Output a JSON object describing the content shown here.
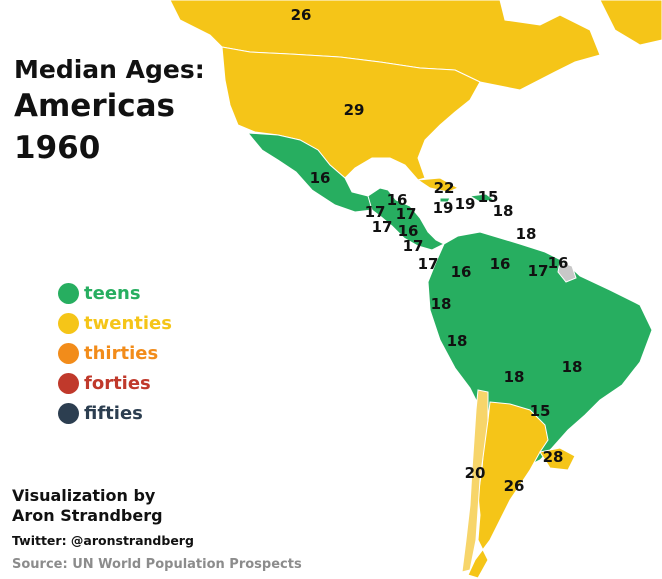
{
  "title": {
    "line1": "Median Ages:",
    "line2": "Americas",
    "line3": "1960"
  },
  "colors": {
    "teens": "#27ae60",
    "twenties": "#f5c518",
    "thirties": "#f28c1a",
    "forties": "#c0392b",
    "fifties": "#2c3e50",
    "no_data": "#c8c8c8"
  },
  "legend": [
    {
      "label": "teens",
      "color": "#27ae60"
    },
    {
      "label": "twenties",
      "color": "#f5c518"
    },
    {
      "label": "thirties",
      "color": "#f28c1a"
    },
    {
      "label": "forties",
      "color": "#c0392b"
    },
    {
      "label": "fifties",
      "color": "#2c3e50"
    }
  ],
  "credits": {
    "line1": "Visualization by",
    "line2": "Aron Strandberg",
    "twitter": "Twitter: @aronstrandberg",
    "source": "Source: UN World Population Prospects"
  },
  "regions": [
    {
      "name": "canada",
      "age": "26"
    },
    {
      "name": "united-states",
      "age": "29"
    },
    {
      "name": "mexico",
      "age": "16"
    },
    {
      "name": "cuba",
      "age": "22"
    },
    {
      "name": "belize",
      "age": "16"
    },
    {
      "name": "guatemala",
      "age": "17"
    },
    {
      "name": "honduras",
      "age": "17"
    },
    {
      "name": "el-salvador",
      "age": "17"
    },
    {
      "name": "nicaragua",
      "age": "16"
    },
    {
      "name": "costa-rica",
      "age": "17"
    },
    {
      "name": "panama",
      "age": "17"
    },
    {
      "name": "jamaica",
      "age": "19"
    },
    {
      "name": "haiti",
      "age": "19"
    },
    {
      "name": "dominican-republic",
      "age": "15"
    },
    {
      "name": "puerto-rico",
      "age": "18"
    },
    {
      "name": "trinidad-and-tobago",
      "age": "18"
    },
    {
      "name": "colombia",
      "age": "16"
    },
    {
      "name": "venezuela",
      "age": "16"
    },
    {
      "name": "guyana",
      "age": "17"
    },
    {
      "name": "suriname",
      "age": "16"
    },
    {
      "name": "ecuador",
      "age": "18"
    },
    {
      "name": "peru",
      "age": "18"
    },
    {
      "name": "brazil",
      "age": "18"
    },
    {
      "name": "bolivia",
      "age": "18"
    },
    {
      "name": "paraguay",
      "age": "15"
    },
    {
      "name": "uruguay",
      "age": "28"
    },
    {
      "name": "chile",
      "age": "20"
    },
    {
      "name": "argentina",
      "age": "26"
    }
  ]
}
